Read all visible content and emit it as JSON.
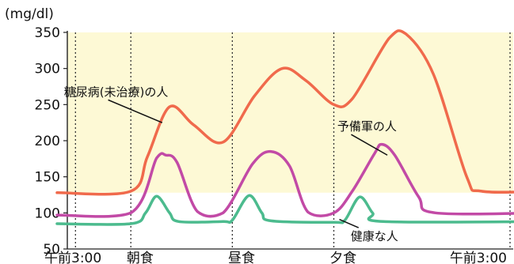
{
  "chart_data": {
    "type": "line",
    "unit_label": "(mg/dl)",
    "ylim": [
      50,
      350
    ],
    "y_ticks": [
      350,
      300,
      250,
      200,
      150,
      100,
      50
    ],
    "xlim": [
      0,
      24
    ],
    "x_ticks": [
      {
        "x": 0,
        "label": "午前3:00"
      },
      {
        "x": 4.5,
        "label": "朝食"
      },
      {
        "x": 10,
        "label": "昼食"
      },
      {
        "x": 15.5,
        "label": "夕食"
      },
      {
        "x": 24,
        "label": "午前3:00"
      }
    ],
    "meal_lines_x": [
      1,
      4,
      9.5,
      15,
      24.6
    ],
    "grid": false,
    "shaded_band": {
      "from": 128,
      "to": 350,
      "color": "#fdf9d5"
    },
    "series": [
      {
        "name": "糖尿病(未治療)の人",
        "color": "#f06a4c",
        "points": [
          [
            0,
            128
          ],
          [
            4,
            130
          ],
          [
            4.9,
            178
          ],
          [
            6.1,
            247
          ],
          [
            7.4,
            222
          ],
          [
            9,
            198
          ],
          [
            10.7,
            262
          ],
          [
            12.2,
            300
          ],
          [
            13.5,
            283
          ],
          [
            15,
            250
          ],
          [
            16,
            258
          ],
          [
            18,
            342
          ],
          [
            18.9,
            348
          ],
          [
            20.4,
            292
          ],
          [
            22.2,
            150
          ],
          [
            23,
            130
          ],
          [
            26.4,
            130
          ]
        ]
      },
      {
        "name": "予備軍の人",
        "color": "#c24aa6",
        "points": [
          [
            0,
            97
          ],
          [
            4,
            100
          ],
          [
            5.4,
            176
          ],
          [
            5.9,
            180
          ],
          [
            6.5,
            170
          ],
          [
            7.6,
            102
          ],
          [
            9,
            100
          ],
          [
            10.6,
            168
          ],
          [
            11.6,
            185
          ],
          [
            12.6,
            165
          ],
          [
            13.6,
            101
          ],
          [
            15,
            100
          ],
          [
            16,
            130
          ],
          [
            17.2,
            182
          ],
          [
            17.6,
            195
          ],
          [
            18.3,
            180
          ],
          [
            19.6,
            122
          ],
          [
            20.5,
            100
          ],
          [
            26.4,
            100
          ]
        ]
      },
      {
        "name": "健康な人",
        "color": "#4cbb8e",
        "points": [
          [
            0,
            85
          ],
          [
            4,
            85
          ],
          [
            4.8,
            100
          ],
          [
            5.4,
            123
          ],
          [
            6.1,
            100
          ],
          [
            6.6,
            88
          ],
          [
            9,
            88
          ],
          [
            9.5,
            90
          ],
          [
            10.4,
            124
          ],
          [
            11.1,
            100
          ],
          [
            11.6,
            89
          ],
          [
            15,
            87
          ],
          [
            15.6,
            90
          ],
          [
            16.4,
            122
          ],
          [
            17.1,
            100
          ],
          [
            17.7,
            88
          ],
          [
            26.4,
            88
          ]
        ]
      }
    ],
    "annotations": [
      {
        "series_index": 0,
        "text": "糖尿病(未治療)の人",
        "text_at": [
          3.2,
          262
        ],
        "arrow_to": [
          5.7,
          225
        ]
      },
      {
        "series_index": 1,
        "text": "予備軍の人",
        "text_at": [
          16.8,
          214
        ],
        "arrow_to": [
          17.9,
          180
        ]
      },
      {
        "series_index": 2,
        "text": "健康な人",
        "text_at": [
          17.2,
          62
        ],
        "arrow_to": [
          15.3,
          91
        ]
      }
    ]
  }
}
